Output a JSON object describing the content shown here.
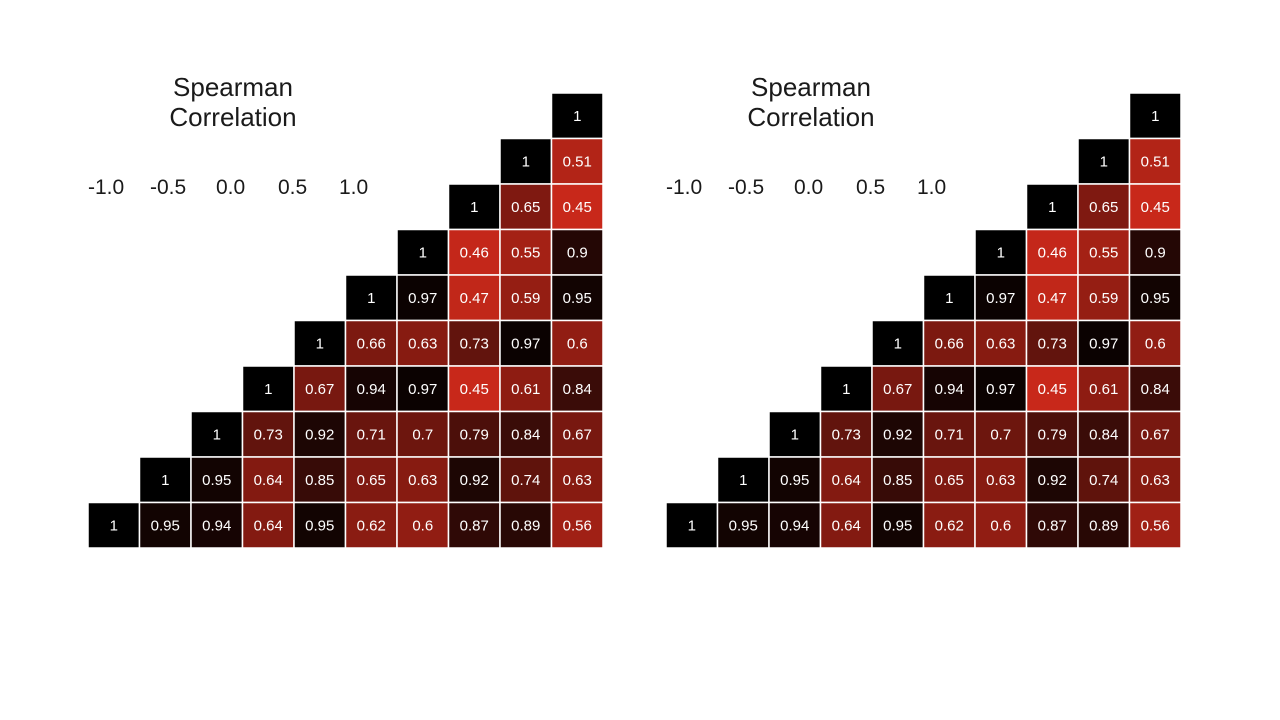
{
  "chart_data": [
    {
      "type": "heatmap",
      "title": [
        "Spearman",
        "Correlation"
      ],
      "color_scale_ticks": [
        "-1.0",
        "-0.5",
        "0.0",
        "0.5",
        "1.0"
      ],
      "color_scale": {
        "high": "#000000",
        "low": "#c8281a"
      },
      "layout": "upper-right triangle, rows listed top to bottom, values left to right",
      "rows": [
        [
          1
        ],
        [
          1,
          0.51
        ],
        [
          1,
          0.65,
          0.45
        ],
        [
          1,
          0.46,
          0.55,
          0.9
        ],
        [
          1,
          0.97,
          0.47,
          0.59,
          0.95
        ],
        [
          1,
          0.66,
          0.63,
          0.73,
          0.97,
          0.6
        ],
        [
          1,
          0.67,
          0.94,
          0.97,
          0.45,
          0.61,
          0.84
        ],
        [
          1,
          0.73,
          0.92,
          0.71,
          0.7,
          0.79,
          0.84,
          0.67
        ],
        [
          1,
          0.95,
          0.64,
          0.85,
          0.65,
          0.63,
          0.92,
          0.74,
          0.63
        ],
        [
          1,
          0.95,
          0.94,
          0.64,
          0.95,
          0.62,
          0.6,
          0.87,
          0.89,
          0.56
        ]
      ]
    },
    {
      "type": "heatmap",
      "title": [
        "Spearman",
        "Correlation"
      ],
      "color_scale_ticks": [
        "-1.0",
        "-0.5",
        "0.0",
        "0.5",
        "1.0"
      ],
      "color_scale": {
        "high": "#000000",
        "low": "#c8281a"
      },
      "layout": "upper-right triangle, rows listed top to bottom, values left to right",
      "rows": [
        [
          1
        ],
        [
          1,
          0.51
        ],
        [
          1,
          0.65,
          0.45
        ],
        [
          1,
          0.46,
          0.55,
          0.9
        ],
        [
          1,
          0.97,
          0.47,
          0.59,
          0.95
        ],
        [
          1,
          0.66,
          0.63,
          0.73,
          0.97,
          0.6
        ],
        [
          1,
          0.67,
          0.94,
          0.97,
          0.45,
          0.61,
          0.84
        ],
        [
          1,
          0.73,
          0.92,
          0.71,
          0.7,
          0.79,
          0.84,
          0.67
        ],
        [
          1,
          0.95,
          0.64,
          0.85,
          0.65,
          0.63,
          0.92,
          0.74,
          0.63
        ],
        [
          1,
          0.95,
          0.94,
          0.64,
          0.95,
          0.62,
          0.6,
          0.87,
          0.89,
          0.56
        ]
      ]
    }
  ]
}
